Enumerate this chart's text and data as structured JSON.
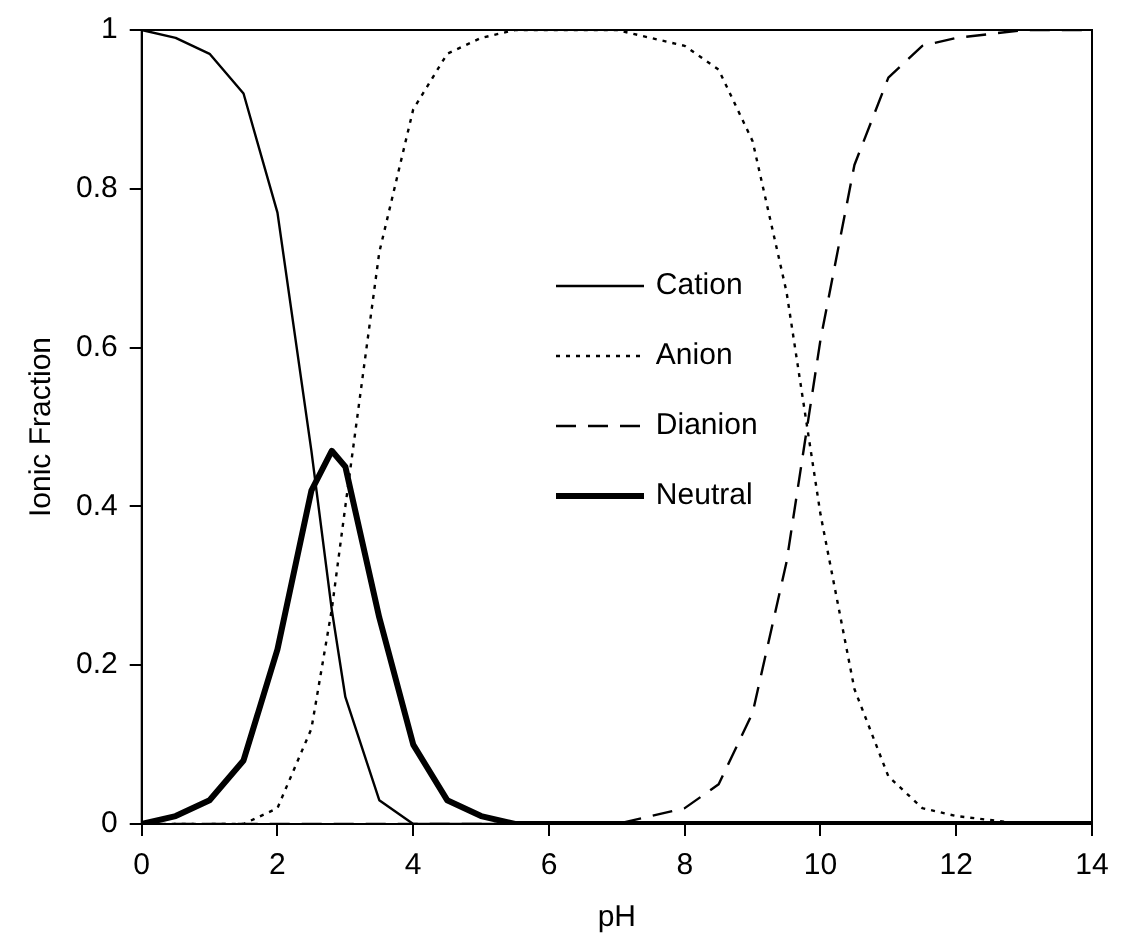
{
  "chart_data": {
    "type": "line",
    "xlabel": "pH",
    "ylabel": "Ionic Fraction",
    "x": [
      0,
      0.5,
      1,
      1.5,
      2,
      2.5,
      2.8,
      3,
      3.5,
      4,
      4.5,
      5,
      5.5,
      6,
      7,
      8,
      8.5,
      9,
      9.5,
      10,
      10.5,
      11,
      11.5,
      12,
      13,
      14
    ],
    "series": [
      {
        "name": "Cation",
        "color": "#000000",
        "line_style": "solid",
        "values": [
          1.0,
          0.99,
          0.97,
          0.92,
          0.77,
          0.47,
          0.27,
          0.16,
          0.03,
          0.0,
          0,
          0,
          0,
          0,
          0,
          0,
          0,
          0,
          0,
          0,
          0,
          0,
          0,
          0,
          0,
          0
        ]
      },
      {
        "name": "Anion",
        "color": "#000000",
        "line_style": "dotted",
        "values": [
          0,
          0,
          0,
          0,
          0.02,
          0.12,
          0.27,
          0.4,
          0.72,
          0.9,
          0.97,
          0.99,
          1.0,
          1.0,
          1.0,
          0.98,
          0.95,
          0.86,
          0.67,
          0.39,
          0.17,
          0.06,
          0.02,
          0.01,
          0,
          0
        ]
      },
      {
        "name": "Dianion",
        "color": "#000000",
        "line_style": "dashed",
        "values": [
          0,
          0,
          0,
          0,
          0,
          0,
          0,
          0,
          0,
          0,
          0,
          0,
          0,
          0,
          0,
          0.02,
          0.05,
          0.14,
          0.33,
          0.61,
          0.83,
          0.94,
          0.98,
          0.99,
          1.0,
          1.0
        ]
      },
      {
        "name": "Neutral",
        "color": "#000000",
        "line_style": "solid",
        "values": [
          0,
          0.01,
          0.03,
          0.08,
          0.22,
          0.42,
          0.47,
          0.45,
          0.26,
          0.1,
          0.03,
          0.01,
          0,
          0,
          0,
          0,
          0,
          0,
          0,
          0,
          0,
          0,
          0,
          0,
          0,
          0
        ]
      }
    ],
    "xlim": [
      0,
      14
    ],
    "xticks": [
      0,
      2,
      4,
      6,
      8,
      10,
      12,
      14
    ],
    "ylim": [
      0,
      1
    ],
    "yticks": [
      0,
      0.2,
      0.4,
      0.6,
      0.8,
      1
    ],
    "grid": false,
    "legend": "top",
    "marker": "none"
  }
}
